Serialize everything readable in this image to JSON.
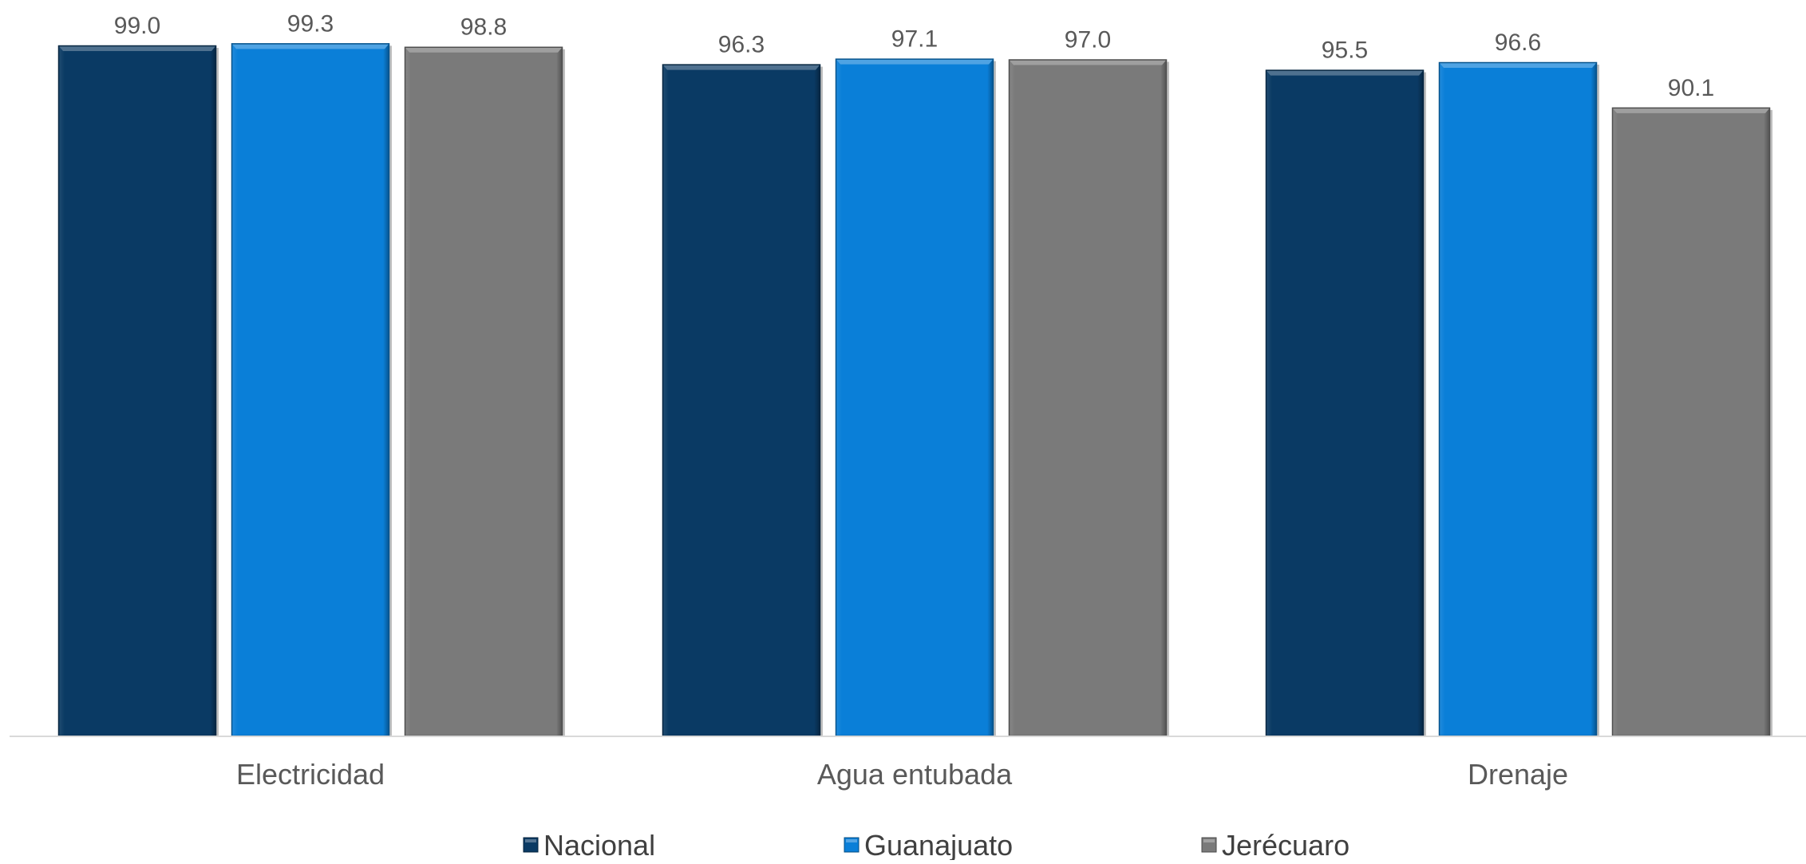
{
  "chart_data": {
    "type": "bar",
    "title": "",
    "xlabel": "",
    "ylabel": "",
    "categories": [
      "Electricidad",
      "Agua entubada",
      "Drenaje"
    ],
    "series": [
      {
        "name": "Nacional",
        "color": "#0a3a64",
        "values": [
          99.0,
          96.3,
          95.5
        ]
      },
      {
        "name": "Guanajuato",
        "color": "#0a7fd8",
        "values": [
          99.3,
          97.1,
          96.6
        ]
      },
      {
        "name": "Jerécuaro",
        "color": "#7a7a7a",
        "values": [
          98.8,
          97.0,
          90.1
        ]
      }
    ],
    "ylim": [
      0,
      100
    ],
    "grid": false,
    "legend": "bottom",
    "data_labels": true
  }
}
